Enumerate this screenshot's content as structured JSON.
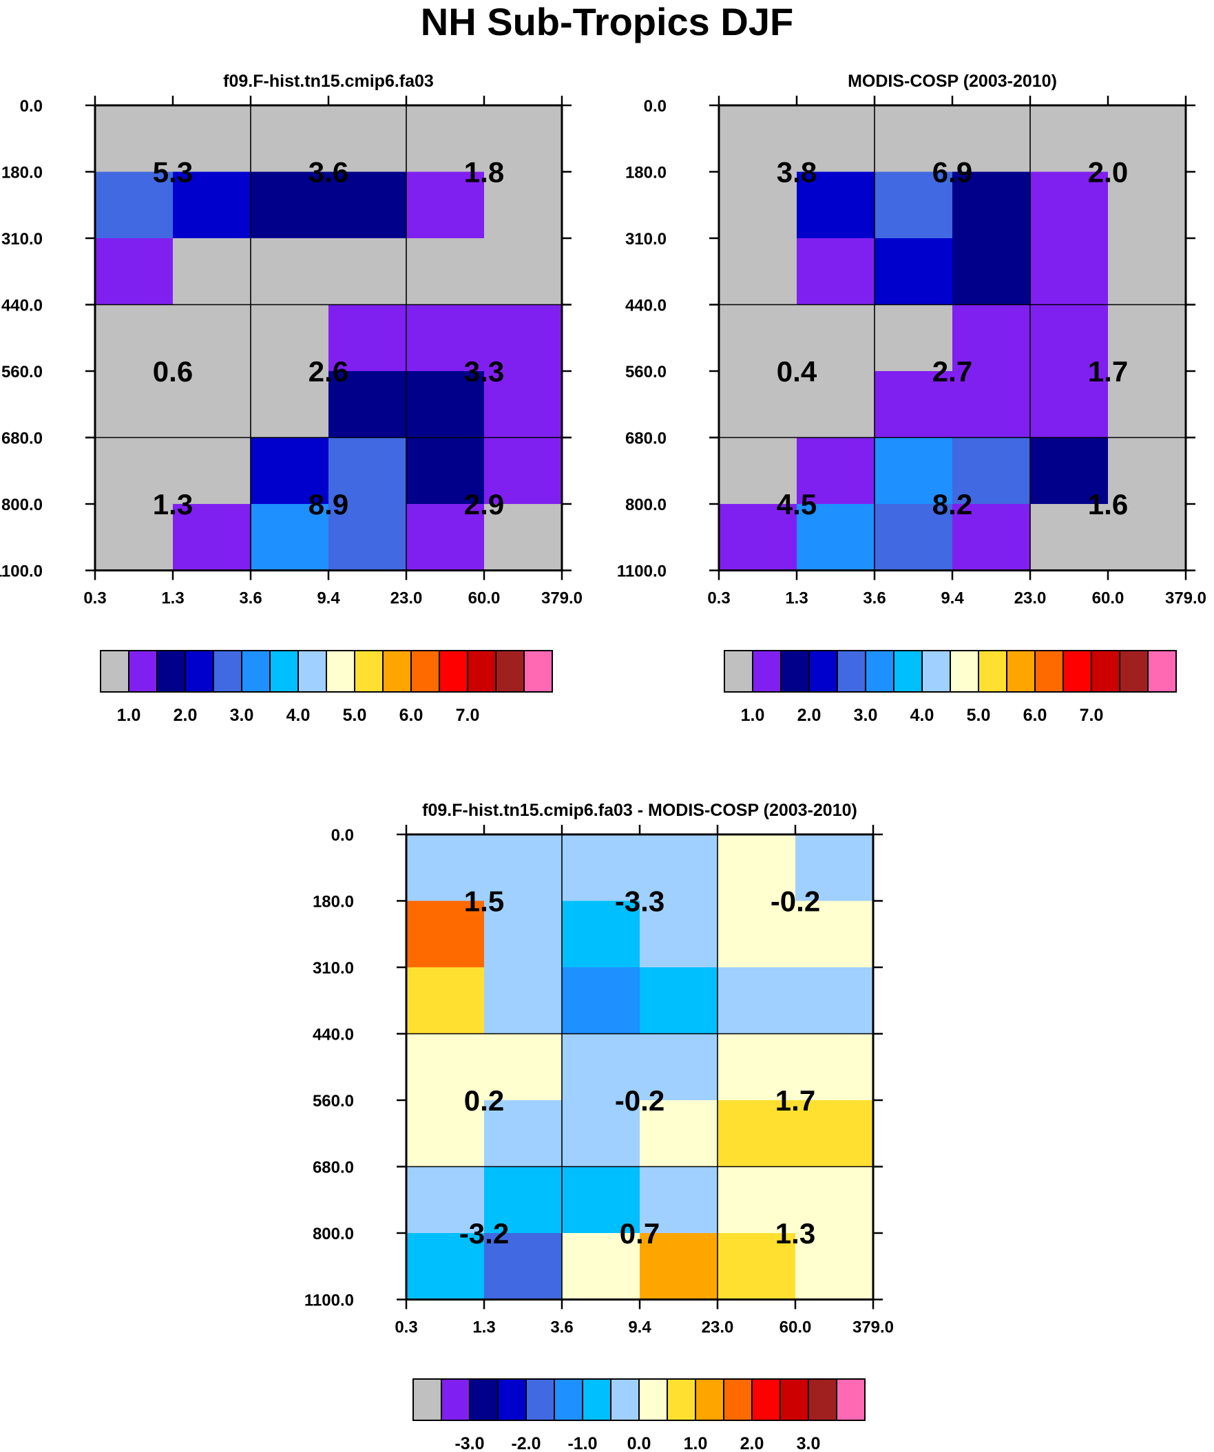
{
  "figure": {
    "title": "NH Sub-Tropics DJF"
  },
  "palette": [
    "#c0c0c0",
    "#8020f0",
    "#00008b",
    "#0000cd",
    "#4169e1",
    "#1e90ff",
    "#00bfff",
    "#a0d0ff",
    "#ffffd0",
    "#ffe030",
    "#ffa500",
    "#ff6a00",
    "#ff0000",
    "#cd0000",
    "#a02020",
    "#ff69b4"
  ],
  "chart_data": [
    {
      "type": "heatmap",
      "title": "f09.F-hist.tn15.cmip6.fa03",
      "x_ticks": [
        "0.3",
        "1.3",
        "3.6",
        "9.4",
        "23.0",
        "60.0",
        "379.0"
      ],
      "y_ticks": [
        "0.0",
        "180.0",
        "310.0",
        "440.0",
        "560.0",
        "680.0",
        "800.0",
        "1100.0"
      ],
      "cells": [
        [
          0,
          0,
          0,
          0,
          0,
          0
        ],
        [
          4,
          3,
          2,
          2,
          1,
          0
        ],
        [
          1,
          0,
          0,
          0,
          0,
          0
        ],
        [
          0,
          0,
          0,
          1,
          1,
          1
        ],
        [
          0,
          0,
          0,
          2,
          2,
          1
        ],
        [
          0,
          0,
          3,
          4,
          2,
          1
        ],
        [
          0,
          1,
          5,
          4,
          1,
          0
        ]
      ],
      "labels": [
        {
          "col": 1,
          "row": 1,
          "text": "5.3"
        },
        {
          "col": 3,
          "row": 1,
          "text": "3.6"
        },
        {
          "col": 5,
          "row": 1,
          "text": "1.8"
        },
        {
          "col": 1,
          "row": 4,
          "text": "0.6"
        },
        {
          "col": 3,
          "row": 4,
          "text": "2.6"
        },
        {
          "col": 5,
          "row": 4,
          "text": "3.3"
        },
        {
          "col": 1,
          "row": 6,
          "text": "1.3"
        },
        {
          "col": 3,
          "row": 6,
          "text": "8.9"
        },
        {
          "col": 5,
          "row": 6,
          "text": "2.9"
        }
      ],
      "colorbar": {
        "colors": [
          0,
          1,
          2,
          3,
          4,
          5,
          6,
          7,
          8,
          9,
          10,
          11,
          12,
          13,
          14,
          15
        ],
        "labels": [
          "1.0",
          "2.0",
          "3.0",
          "4.0",
          "5.0",
          "6.0",
          "7.0"
        ],
        "label_start": 1,
        "label_step": 2
      }
    },
    {
      "type": "heatmap",
      "title": "MODIS-COSP (2003-2010)",
      "x_ticks": [
        "0.3",
        "1.3",
        "3.6",
        "9.4",
        "23.0",
        "60.0",
        "379.0"
      ],
      "y_ticks": [
        "0.0",
        "180.0",
        "310.0",
        "440.0",
        "560.0",
        "680.0",
        "800.0",
        "1100.0"
      ],
      "cells": [
        [
          0,
          0,
          0,
          0,
          0,
          0
        ],
        [
          0,
          3,
          4,
          2,
          1,
          0
        ],
        [
          0,
          1,
          3,
          2,
          1,
          0
        ],
        [
          0,
          0,
          0,
          1,
          1,
          0
        ],
        [
          0,
          0,
          1,
          1,
          1,
          0
        ],
        [
          0,
          1,
          5,
          4,
          2,
          0
        ],
        [
          1,
          5,
          4,
          1,
          0,
          0
        ]
      ],
      "labels": [
        {
          "col": 1,
          "row": 1,
          "text": "3.8"
        },
        {
          "col": 3,
          "row": 1,
          "text": "6.9"
        },
        {
          "col": 5,
          "row": 1,
          "text": "2.0"
        },
        {
          "col": 1,
          "row": 4,
          "text": "0.4"
        },
        {
          "col": 3,
          "row": 4,
          "text": "2.7"
        },
        {
          "col": 5,
          "row": 4,
          "text": "1.7"
        },
        {
          "col": 1,
          "row": 6,
          "text": "4.5"
        },
        {
          "col": 3,
          "row": 6,
          "text": "8.2"
        },
        {
          "col": 5,
          "row": 6,
          "text": "1.6"
        }
      ],
      "colorbar": {
        "colors": [
          0,
          1,
          2,
          3,
          4,
          5,
          6,
          7,
          8,
          9,
          10,
          11,
          12,
          13,
          14,
          15
        ],
        "labels": [
          "1.0",
          "2.0",
          "3.0",
          "4.0",
          "5.0",
          "6.0",
          "7.0"
        ],
        "label_start": 1,
        "label_step": 2
      }
    },
    {
      "type": "heatmap",
      "title": "f09.F-hist.tn15.cmip6.fa03 - MODIS-COSP (2003-2010)",
      "x_ticks": [
        "0.3",
        "1.3",
        "3.6",
        "9.4",
        "23.0",
        "60.0",
        "379.0"
      ],
      "y_ticks": [
        "0.0",
        "180.0",
        "310.0",
        "440.0",
        "560.0",
        "680.0",
        "800.0",
        "1100.0"
      ],
      "cells": [
        [
          7,
          7,
          7,
          7,
          8,
          7
        ],
        [
          11,
          7,
          6,
          7,
          8,
          8
        ],
        [
          9,
          7,
          5,
          6,
          7,
          7
        ],
        [
          8,
          8,
          7,
          7,
          8,
          8
        ],
        [
          8,
          7,
          7,
          8,
          9,
          9
        ],
        [
          7,
          6,
          6,
          7,
          8,
          8
        ],
        [
          6,
          4,
          8,
          10,
          9,
          8
        ]
      ],
      "labels": [
        {
          "col": 1,
          "row": 1,
          "text": "1.5"
        },
        {
          "col": 3,
          "row": 1,
          "text": "-3.3"
        },
        {
          "col": 5,
          "row": 1,
          "text": "-0.2"
        },
        {
          "col": 1,
          "row": 4,
          "text": "0.2"
        },
        {
          "col": 3,
          "row": 4,
          "text": "-0.2"
        },
        {
          "col": 5,
          "row": 4,
          "text": "1.7"
        },
        {
          "col": 1,
          "row": 6,
          "text": "-3.2"
        },
        {
          "col": 3,
          "row": 6,
          "text": "0.7"
        },
        {
          "col": 5,
          "row": 6,
          "text": "1.3"
        }
      ],
      "colorbar": {
        "colors": [
          0,
          1,
          2,
          3,
          4,
          5,
          6,
          7,
          8,
          9,
          10,
          11,
          12,
          13,
          14,
          15
        ],
        "labels": [
          "-3.0",
          "-2.0",
          "-1.0",
          "0.0",
          "1.0",
          "2.0",
          "3.0"
        ],
        "label_start": 2,
        "label_step": 2
      }
    }
  ]
}
